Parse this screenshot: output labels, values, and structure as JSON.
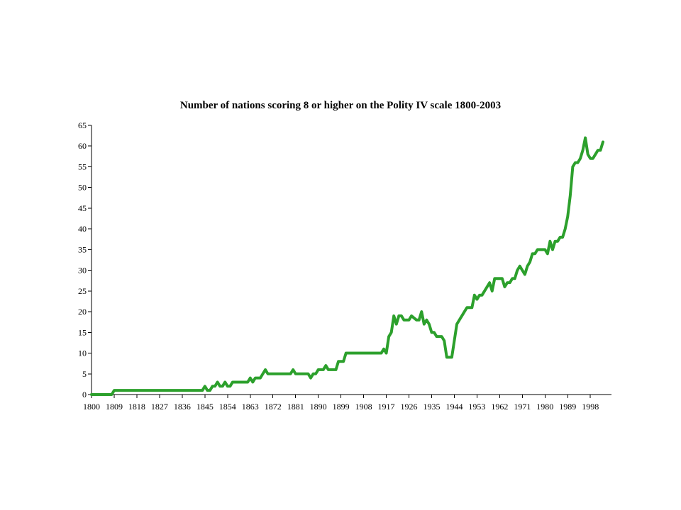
{
  "chart_data": {
    "type": "line",
    "title": "Number of nations scoring 8 or higher on the Polity IV scale 1800-2003",
    "xlabel": "",
    "ylabel": "",
    "xlim": [
      1800,
      2003
    ],
    "ylim": [
      0,
      65
    ],
    "grid": false,
    "legend": "none",
    "x_tick_labels": [
      "1800",
      "1809",
      "1818",
      "1827",
      "1836",
      "1845",
      "1854",
      "1863",
      "1872",
      "1881",
      "1890",
      "1899",
      "1908",
      "1917",
      "1926",
      "1935",
      "1944",
      "1953",
      "1962",
      "1971",
      "1980",
      "1989",
      "1998"
    ],
    "y_tick_labels": [
      "0",
      "5",
      "10",
      "15",
      "20",
      "25",
      "30",
      "35",
      "40",
      "45",
      "50",
      "55",
      "60",
      "65"
    ],
    "series": [
      {
        "color": "#2ca02c",
        "points": [
          [
            1800,
            0
          ],
          [
            1808,
            0
          ],
          [
            1809,
            1
          ],
          [
            1844,
            1
          ],
          [
            1845,
            2
          ],
          [
            1846,
            1
          ],
          [
            1847,
            1
          ],
          [
            1848,
            2
          ],
          [
            1849,
            2
          ],
          [
            1850,
            3
          ],
          [
            1851,
            2
          ],
          [
            1852,
            2
          ],
          [
            1853,
            3
          ],
          [
            1854,
            2
          ],
          [
            1855,
            2
          ],
          [
            1856,
            3
          ],
          [
            1862,
            3
          ],
          [
            1863,
            4
          ],
          [
            1864,
            3
          ],
          [
            1865,
            4
          ],
          [
            1867,
            4
          ],
          [
            1868,
            5
          ],
          [
            1869,
            6
          ],
          [
            1870,
            5
          ],
          [
            1879,
            5
          ],
          [
            1880,
            6
          ],
          [
            1881,
            5
          ],
          [
            1886,
            5
          ],
          [
            1887,
            4
          ],
          [
            1888,
            5
          ],
          [
            1889,
            5
          ],
          [
            1890,
            6
          ],
          [
            1892,
            6
          ],
          [
            1893,
            7
          ],
          [
            1894,
            6
          ],
          [
            1897,
            6
          ],
          [
            1898,
            8
          ],
          [
            1900,
            8
          ],
          [
            1901,
            10
          ],
          [
            1915,
            10
          ],
          [
            1916,
            11
          ],
          [
            1917,
            10
          ],
          [
            1918,
            14
          ],
          [
            1919,
            15
          ],
          [
            1920,
            19
          ],
          [
            1921,
            17
          ],
          [
            1922,
            19
          ],
          [
            1923,
            19
          ],
          [
            1924,
            18
          ],
          [
            1926,
            18
          ],
          [
            1927,
            19
          ],
          [
            1929,
            18
          ],
          [
            1930,
            18
          ],
          [
            1931,
            20
          ],
          [
            1932,
            17
          ],
          [
            1933,
            18
          ],
          [
            1934,
            17
          ],
          [
            1935,
            15
          ],
          [
            1936,
            15
          ],
          [
            1937,
            14
          ],
          [
            1939,
            14
          ],
          [
            1940,
            13
          ],
          [
            1941,
            9
          ],
          [
            1943,
            9
          ],
          [
            1944,
            13
          ],
          [
            1945,
            17
          ],
          [
            1946,
            18
          ],
          [
            1947,
            19
          ],
          [
            1948,
            20
          ],
          [
            1949,
            21
          ],
          [
            1951,
            21
          ],
          [
            1952,
            24
          ],
          [
            1953,
            23
          ],
          [
            1954,
            24
          ],
          [
            1955,
            24
          ],
          [
            1956,
            25
          ],
          [
            1957,
            26
          ],
          [
            1958,
            27
          ],
          [
            1959,
            25
          ],
          [
            1960,
            28
          ],
          [
            1963,
            28
          ],
          [
            1964,
            26
          ],
          [
            1965,
            27
          ],
          [
            1966,
            27
          ],
          [
            1967,
            28
          ],
          [
            1968,
            28
          ],
          [
            1969,
            30
          ],
          [
            1970,
            31
          ],
          [
            1971,
            30
          ],
          [
            1972,
            29
          ],
          [
            1973,
            31
          ],
          [
            1974,
            32
          ],
          [
            1975,
            34
          ],
          [
            1976,
            34
          ],
          [
            1977,
            35
          ],
          [
            1980,
            35
          ],
          [
            1981,
            34
          ],
          [
            1982,
            37
          ],
          [
            1983,
            35
          ],
          [
            1984,
            37
          ],
          [
            1985,
            37
          ],
          [
            1986,
            38
          ],
          [
            1987,
            38
          ],
          [
            1988,
            40
          ],
          [
            1989,
            43
          ],
          [
            1990,
            48
          ],
          [
            1991,
            55
          ],
          [
            1992,
            56
          ],
          [
            1993,
            56
          ],
          [
            1994,
            57
          ],
          [
            1995,
            59
          ],
          [
            1996,
            62
          ],
          [
            1997,
            58
          ],
          [
            1998,
            57
          ],
          [
            1999,
            57
          ],
          [
            2000,
            58
          ],
          [
            2001,
            59
          ],
          [
            2002,
            59
          ],
          [
            2003,
            61
          ]
        ]
      }
    ]
  }
}
